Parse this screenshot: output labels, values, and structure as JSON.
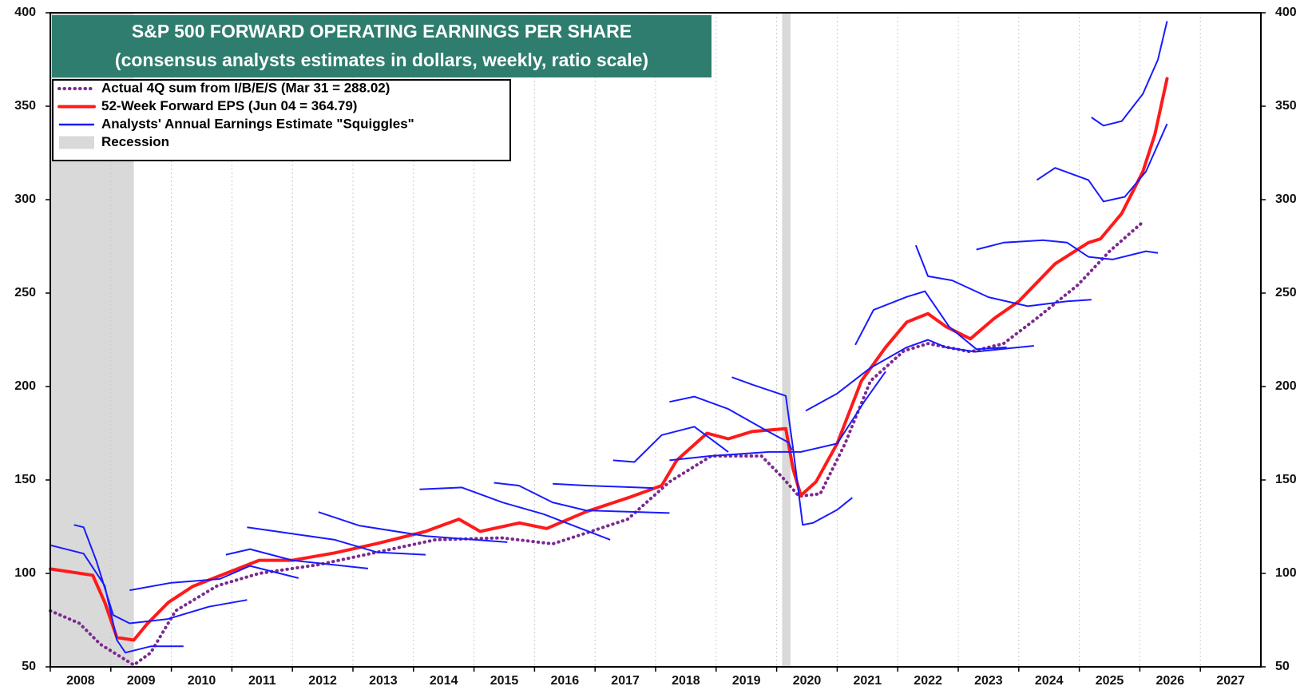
{
  "chart_data": {
    "type": "line",
    "title": "S&P 500 FORWARD OPERATING EARNINGS PER SHARE",
    "subtitle": "(consensus analysts estimates in dollars, weekly, ratio scale)",
    "xlim": [
      2008,
      2028
    ],
    "xticks": [
      2008,
      2009,
      2010,
      2011,
      2012,
      2013,
      2014,
      2015,
      2016,
      2017,
      2018,
      2019,
      2020,
      2021,
      2022,
      2023,
      2024,
      2025,
      2026,
      2027
    ],
    "ylim": [
      50,
      400
    ],
    "yticks": [
      50,
      100,
      150,
      200,
      250,
      300,
      350,
      400
    ],
    "grid": true,
    "legend": "upper left",
    "recession_label": "Recession",
    "recession_color": "#d9d9d9",
    "recessions": [
      [
        2008,
        2009.38
      ],
      [
        2020.09,
        2020.23
      ]
    ],
    "series": [
      {
        "name": "Actual 4Q sum from I/B/E/S (Mar 31 = 288.02)",
        "color": "#7b2a8f",
        "style": "dotted",
        "x": [
          2008,
          2008.48,
          2008.83,
          2009.38,
          2009.66,
          2010.07,
          2010.76,
          2011.45,
          2012.42,
          2013.39,
          2014.36,
          2015.46,
          2016.3,
          2016.85,
          2017.54,
          2018.23,
          2018.92,
          2019.75,
          2020.09,
          2020.37,
          2020.72,
          2021.13,
          2021.55,
          2022.1,
          2022.5,
          2023.2,
          2023.75,
          2024.3,
          2024.98,
          2025.5,
          2026.05
        ],
        "values": [
          80,
          73.3,
          62,
          51,
          57.6,
          80,
          93.4,
          100,
          104.6,
          111.3,
          118,
          119,
          115.8,
          121.6,
          129,
          149,
          162.8,
          162.8,
          151.6,
          141.3,
          142.6,
          169.5,
          203,
          219,
          223,
          218.6,
          223,
          236.6,
          254.5,
          272.4,
          288.02
        ]
      },
      {
        "name": "52-Week Forward EPS (Jun 04 = 364.79)",
        "color": "#ff1a1a",
        "style": "solid",
        "x": [
          2008,
          2008.7,
          2008.9,
          2009.1,
          2009.38,
          2009.6,
          2009.95,
          2010.35,
          2010.9,
          2011.45,
          2012,
          2012.7,
          2013.4,
          2014.2,
          2014.75,
          2015.1,
          2015.75,
          2016.2,
          2016.85,
          2017.55,
          2018.1,
          2018.35,
          2018.85,
          2019.2,
          2019.6,
          2020.15,
          2020.27,
          2020.4,
          2020.65,
          2021,
          2021.4,
          2021.8,
          2022.15,
          2022.5,
          2022.8,
          2023.2,
          2023.6,
          2024,
          2024.6,
          2025.15,
          2025.35,
          2025.7,
          2026.05,
          2026.25,
          2026.45
        ],
        "values": [
          102.4,
          99,
          84.5,
          65.7,
          64.3,
          73,
          84.5,
          93,
          100,
          107,
          107,
          111,
          116,
          122.5,
          129,
          122.5,
          127,
          124,
          133,
          140.5,
          147,
          160.5,
          175,
          172,
          176,
          177.5,
          156,
          141.7,
          149,
          169.5,
          203,
          221,
          234.5,
          239,
          232,
          225.5,
          236.6,
          245.6,
          265.7,
          277,
          279,
          292.6,
          315,
          335,
          364.79
        ]
      },
      {
        "name": "Analysts' Annual Earnings Estimate \"Squiggles\"",
        "color": "#1a1aff",
        "style": "thin",
        "x": [
          2008,
          2008.55,
          2008.9,
          2009.1,
          2009.24,
          2009.66,
          2010.2,
          null,
          2008.39,
          2008.55,
          2008.76,
          2009.04,
          2009.31,
          2009.93,
          2010.62,
          2011.25,
          null,
          2009.31,
          2010,
          2010.8,
          2011.3,
          2012.1,
          null,
          2010.9,
          2011.3,
          2012,
          2013.25,
          null,
          2011.25,
          2011.73,
          2012.7,
          2013.4,
          2014.2,
          null,
          2012.43,
          2013.1,
          2014.2,
          2015.55,
          null,
          2014.1,
          2014.8,
          2015.47,
          2016.15,
          2017.25,
          null,
          2015.33,
          2015.74,
          2016.3,
          2016.85,
          2018.23,
          null,
          2016.3,
          2016.85,
          2017.96,
          null,
          2017.3,
          2017.65,
          2018.1,
          2018.64,
          2019.2,
          null,
          2018.23,
          2018.64,
          2019.2,
          2019.8,
          2020.2,
          2020.25,
          null,
          2019.26,
          2019.6,
          2020.15,
          2020.27,
          2020.43,
          2020.6,
          2021,
          2021.25,
          null,
          2018.23,
          2018.9,
          2019.88,
          2020.4,
          2021,
          2021.45,
          2021.8,
          null,
          2020.48,
          2021,
          2021.55,
          2022.15,
          2022.5,
          2022.8,
          2023.28,
          2024.25,
          null,
          2021.3,
          2021.6,
          2022.15,
          2022.45,
          2022.85,
          2023.3,
          2023.8,
          null,
          2022.3,
          2022.5,
          2022.9,
          2023.5,
          2024.15,
          2024.8,
          2025.2,
          null,
          2023.3,
          2023.75,
          2024.4,
          2024.8,
          2025.15,
          2025.55,
          2026.1,
          2026.3,
          null,
          2024.3,
          2024.6,
          2025.15,
          2025.4,
          2025.75,
          2026.1,
          2026.45,
          null,
          2025.2,
          2025.4,
          2025.7,
          2026.05,
          2026.3,
          2026.45
        ],
        "values": [
          115.1,
          110.6,
          93.4,
          64.3,
          57.6,
          61,
          61,
          null,
          126,
          124.7,
          106.8,
          77.7,
          73.3,
          75.5,
          82.2,
          85.8,
          null,
          91,
          95,
          97,
          104,
          97.5,
          null,
          110,
          113,
          107,
          102.6,
          null,
          124.7,
          122.5,
          118,
          111.3,
          110,
          null,
          132.8,
          125.6,
          120,
          116.7,
          null,
          145,
          146,
          138,
          131.7,
          118,
          null,
          148.5,
          147,
          138,
          133.7,
          132.3,
          null,
          148,
          147,
          145.7,
          null,
          160.5,
          159.6,
          174,
          178.5,
          165,
          null,
          191.8,
          194.6,
          188,
          177,
          170,
          166,
          null,
          205,
          201,
          195,
          167,
          126,
          127,
          134,
          140.5,
          null,
          160.5,
          162.8,
          165,
          165,
          169.5,
          192,
          208,
          null,
          187,
          196.3,
          210,
          221,
          225,
          221,
          218.6,
          221.8,
          null,
          222.3,
          241,
          248,
          251,
          232,
          220,
          221,
          null,
          275.6,
          259,
          256.8,
          247.8,
          243,
          245.6,
          246.5,
          null,
          273.3,
          277,
          278.3,
          277,
          269.4,
          268,
          272.4,
          271.5,
          null,
          310.5,
          317,
          310.5,
          299,
          301.5,
          315,
          340.5,
          null,
          344,
          339.6,
          342,
          356.6,
          375,
          395.5
        ]
      }
    ]
  }
}
